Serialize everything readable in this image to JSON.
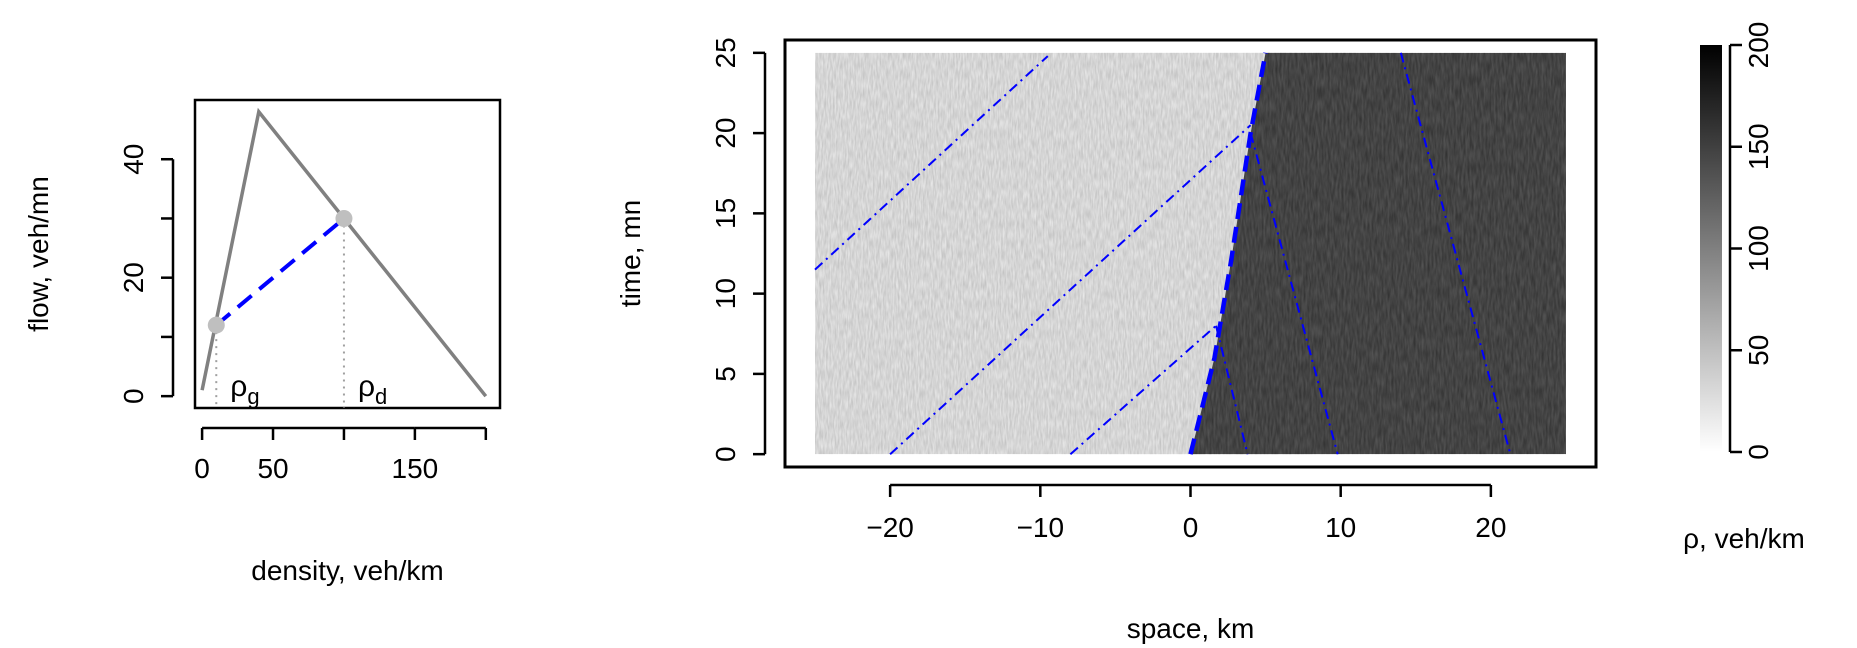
{
  "chart_data": [
    {
      "type": "line",
      "xlabel": "density, veh/km",
      "ylabel": "flow, veh/mn",
      "xlim": [
        -5,
        210
      ],
      "ylim": [
        -2,
        50
      ],
      "xticks": [
        0,
        50,
        150
      ],
      "xtick_labels": [
        "0",
        "50",
        "150"
      ],
      "yticks": [
        0,
        20,
        40
      ],
      "ytick_labels": [
        "0",
        "20",
        "40"
      ],
      "series": [
        {
          "style": "solid",
          "color": "#808080",
          "x": [
            0,
            40,
            100,
            200
          ],
          "y": [
            1,
            48,
            30,
            0
          ]
        },
        {
          "style": "dashed",
          "color": "#0000ff",
          "x": [
            10,
            100
          ],
          "y": [
            12,
            30
          ]
        }
      ],
      "points": [
        {
          "x": 10,
          "y": 12
        },
        {
          "x": 100,
          "y": 30
        }
      ],
      "annotations": [
        {
          "base": "ρ",
          "sub": "g",
          "x": 10
        },
        {
          "base": "ρ",
          "sub": "d",
          "x": 100
        }
      ]
    },
    {
      "type": "heatmap",
      "xlabel": "space, km",
      "ylabel": "time, mn",
      "xlim": [
        -27,
        27
      ],
      "ylim": [
        -0.8,
        25.8
      ],
      "xticks": [
        -20,
        -10,
        0,
        10,
        20
      ],
      "xtick_labels": [
        "−20",
        "−10",
        "0",
        "10",
        "20"
      ],
      "yticks": [
        0,
        5,
        10,
        15,
        20,
        25
      ],
      "ytick_labels": [
        "0",
        "5",
        "10",
        "15",
        "20",
        "25"
      ],
      "field_extent": {
        "x": [
          -25,
          25
        ],
        "y": [
          0,
          25
        ]
      },
      "shock_line": {
        "color": "#0000ff",
        "x": [
          0,
          1.6,
          2.7,
          4,
          5
        ],
        "y": [
          0,
          6,
          12,
          20,
          25
        ]
      },
      "characteristics": [
        {
          "x": [
            -25,
            -9.5
          ],
          "y": [
            11.5,
            24.8
          ]
        },
        {
          "x": [
            -20,
            4
          ],
          "y": [
            0,
            20.5
          ]
        },
        {
          "x": [
            -8,
            1.7
          ],
          "y": [
            0,
            8
          ]
        },
        {
          "x": [
            1.7,
            3.8
          ],
          "y": [
            8,
            0
          ]
        },
        {
          "x": [
            4,
            9.8
          ],
          "y": [
            20,
            0
          ]
        },
        {
          "x": [
            14,
            21.3
          ],
          "y": [
            25,
            0
          ]
        }
      ],
      "colorbar": {
        "label": "ρ, veh/km",
        "range": [
          0,
          200
        ],
        "ticks": [
          0,
          50,
          100,
          150,
          200
        ],
        "tick_labels": [
          "0",
          "50",
          "100",
          "150",
          "200"
        ],
        "color_low": "#ffffff",
        "color_high": "#000000"
      }
    }
  ]
}
